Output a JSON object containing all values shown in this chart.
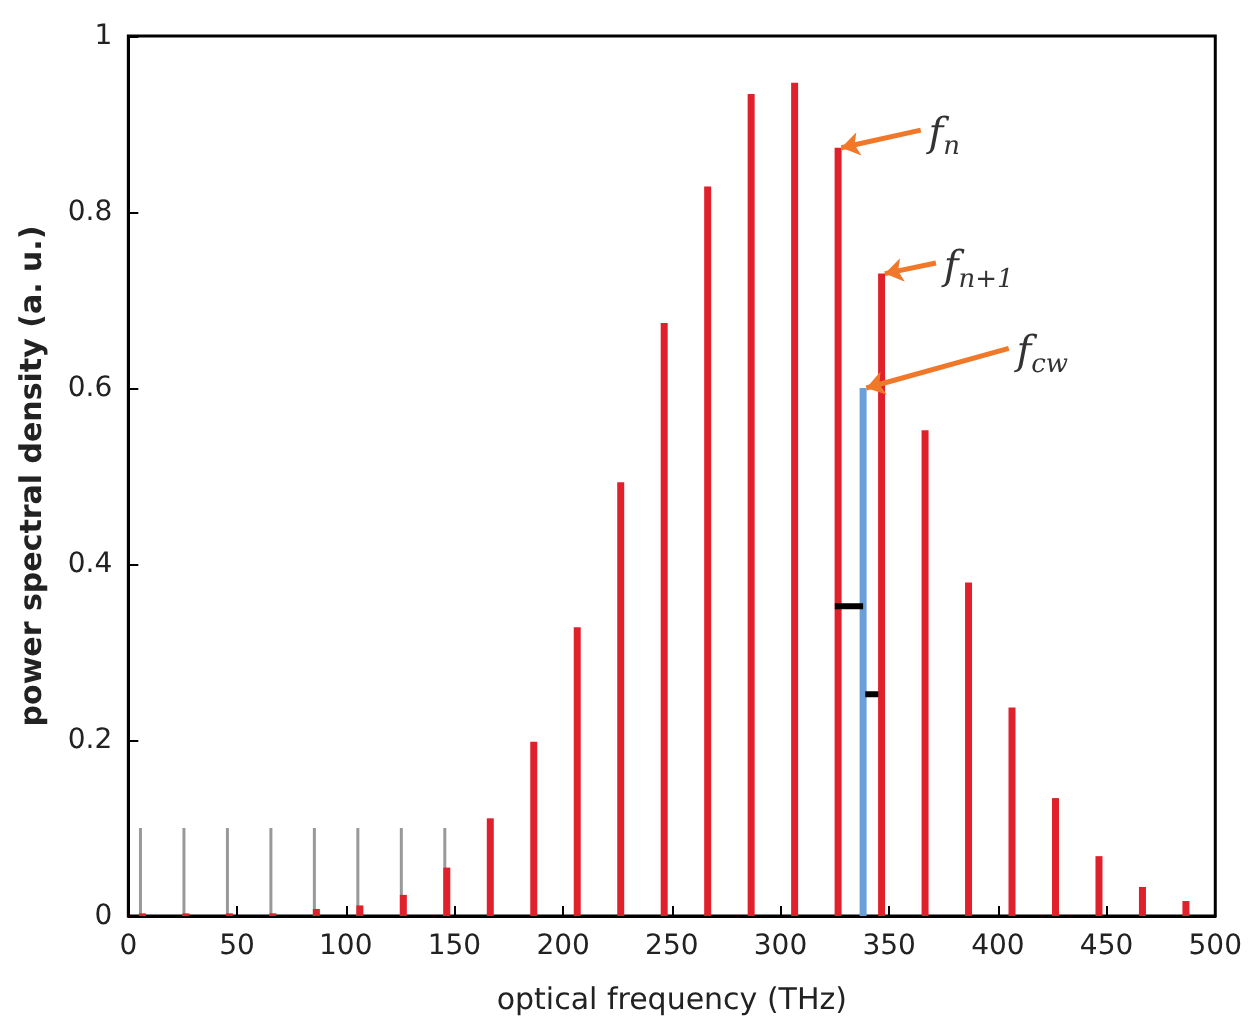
{
  "chart_data": {
    "type": "bar",
    "xlabel": "optical frequency (THz)",
    "ylabel": "power spectral density (a. u.)",
    "xlim": [
      0,
      500
    ],
    "xticks": [
      0,
      50,
      100,
      150,
      200,
      250,
      300,
      350,
      400,
      450,
      500
    ],
    "ylim": [
      0,
      1
    ],
    "yticks": [
      0,
      0.2,
      0.4,
      0.6,
      0.8,
      1
    ],
    "grid": false,
    "series": [
      {
        "color": "#999999",
        "x": [
          6.5,
          26.5,
          46.5,
          66.5,
          86.5,
          106.5,
          126.5,
          146.5
        ],
        "values": [
          0.1,
          0.1,
          0.1,
          0.1,
          0.1,
          0.1,
          0.1,
          0.1
        ]
      },
      {
        "color": "#e0202a",
        "x": [
          6.5,
          26.5,
          46.5,
          66.5,
          86.5,
          106.5,
          126.5,
          146.5,
          166.5,
          186.5,
          206.5,
          226.5,
          246.5,
          266.5,
          286.5,
          306.5,
          326.5,
          346.5,
          366.5,
          386.5,
          406.5,
          426.5,
          446.5,
          466.5,
          486.5
        ],
        "values": [
          0.003,
          0.003,
          0.003,
          0.003,
          0.008,
          0.012,
          0.024,
          0.055,
          0.111,
          0.198,
          0.328,
          0.493,
          0.674,
          0.829,
          0.934,
          0.947,
          0.873,
          0.73,
          0.552,
          0.379,
          0.237,
          0.134,
          0.068,
          0.033,
          0.017
        ]
      },
      {
        "color": "#6a9fd8",
        "x": [
          338
        ],
        "values": [
          0.6
        ]
      },
      {
        "type": "line",
        "color": "#000000",
        "marker": "none",
        "x": [
          325,
          338
        ],
        "values": [
          0.352,
          0.352
        ]
      },
      {
        "type": "line",
        "color": "#000000",
        "marker": "none",
        "x": [
          339,
          345
        ],
        "values": [
          0.252,
          0.252
        ]
      }
    ],
    "annotations": [
      {
        "text": "f$_{n}$",
        "x": 326.5,
        "y": 0.873
      },
      {
        "text": "f$_{n+1}$",
        "x": 346.5,
        "y": 0.73
      },
      {
        "text": "f$_{cw}$",
        "x": 338,
        "y": 0.6
      }
    ]
  }
}
